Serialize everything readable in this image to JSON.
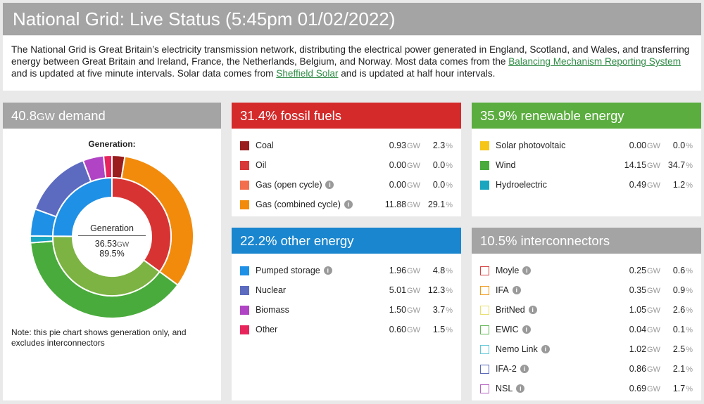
{
  "header": {
    "title": "National Grid: Live Status (5:45pm 01/02/2022)"
  },
  "intro": {
    "text1": "The National Grid is Great Britain’s electricity transmission network, distributing the electrical power generated in England, Scotland, and Wales, and transferring energy between Great Britain and Ireland, France, the Netherlands, Belgium, and Norway. Most data comes from the ",
    "link1": "Balancing Mechanism Reporting System",
    "text2": " and is updated at five minute intervals. Solar data comes from ",
    "link2": "Sheffield Solar",
    "text3": " and is updated at half hour intervals."
  },
  "demand": {
    "value": "40.8",
    "unit": "GW",
    "suffix": " demand",
    "chart_title": "Generation:",
    "centre_label": "Generation",
    "centre_value": "36.53",
    "centre_unit": "GW",
    "centre_pct": "89.5%",
    "note": "Note: this pie chart shows generation only, and excludes interconnectors"
  },
  "units": {
    "gw": "GW",
    "pct": "%"
  },
  "fossil": {
    "title": "31.4% fossil fuels",
    "color": "#d42a2a",
    "rows": [
      {
        "label": "Coal",
        "gw": "0.93",
        "pct": "2.3",
        "color": "#9a1c1c",
        "info": false
      },
      {
        "label": "Oil",
        "gw": "0.00",
        "pct": "0.0",
        "color": "#d93838",
        "info": false
      },
      {
        "label": "Gas (open cycle)",
        "gw": "0.00",
        "pct": "0.0",
        "color": "#f26e4c",
        "info": true
      },
      {
        "label": "Gas (combined cycle)",
        "gw": "11.88",
        "pct": "29.1",
        "color": "#f28b0c",
        "info": true
      }
    ]
  },
  "renewable": {
    "title": "35.9% renewable energy",
    "color": "#5aad3e",
    "rows": [
      {
        "label": "Solar photovoltaic",
        "gw": "0.00",
        "pct": "0.0",
        "color": "#f5c518",
        "info": false
      },
      {
        "label": "Wind",
        "gw": "14.15",
        "pct": "34.7",
        "color": "#49ab3c",
        "info": false
      },
      {
        "label": "Hydroelectric",
        "gw": "0.49",
        "pct": "1.2",
        "color": "#1aa6be",
        "info": false
      }
    ]
  },
  "other": {
    "title": "22.2% other energy",
    "color": "#1a86cf",
    "rows": [
      {
        "label": "Pumped storage",
        "gw": "1.96",
        "pct": "4.8",
        "color": "#1e90e6",
        "info": true
      },
      {
        "label": "Nuclear",
        "gw": "5.01",
        "pct": "12.3",
        "color": "#5c6bc0",
        "info": false
      },
      {
        "label": "Biomass",
        "gw": "1.50",
        "pct": "3.7",
        "color": "#b044c4",
        "info": false
      },
      {
        "label": "Other",
        "gw": "0.60",
        "pct": "1.5",
        "color": "#e8245c",
        "info": false
      }
    ]
  },
  "interconnectors": {
    "title": "10.5% interconnectors",
    "color": "#a4a4a4",
    "rows": [
      {
        "label": "Moyle",
        "gw": "0.25",
        "pct": "0.6",
        "color": "#d94040",
        "info": true
      },
      {
        "label": "IFA",
        "gw": "0.35",
        "pct": "0.9",
        "color": "#f29a1a",
        "info": true
      },
      {
        "label": "BritNed",
        "gw": "1.05",
        "pct": "2.6",
        "color": "#e8e070",
        "info": true
      },
      {
        "label": "EWIC",
        "gw": "0.04",
        "pct": "0.1",
        "color": "#66b858",
        "info": true
      },
      {
        "label": "Nemo Link",
        "gw": "1.02",
        "pct": "2.5",
        "color": "#62c8d8",
        "info": true
      },
      {
        "label": "IFA-2",
        "gw": "0.86",
        "pct": "2.1",
        "color": "#5a68b8",
        "info": true
      },
      {
        "label": "NSL",
        "gw": "0.69",
        "pct": "1.7",
        "color": "#b866c4",
        "info": true
      }
    ]
  },
  "chart_data": {
    "type": "pie",
    "title": "Generation:",
    "inner_ring": [
      {
        "name": "fossil fuels",
        "value": 12.81,
        "color": "#d83333"
      },
      {
        "name": "renewable energy",
        "value": 14.64,
        "color": "#7cb342"
      },
      {
        "name": "other energy",
        "value": 9.07,
        "color": "#1e90e6"
      }
    ],
    "outer_ring": [
      {
        "name": "Coal",
        "value": 0.93,
        "color": "#9a1c1c"
      },
      {
        "name": "Oil",
        "value": 0.0,
        "color": "#d93838"
      },
      {
        "name": "Gas (open cycle)",
        "value": 0.0,
        "color": "#f26e4c"
      },
      {
        "name": "Gas (combined cycle)",
        "value": 11.88,
        "color": "#f28b0c"
      },
      {
        "name": "Solar photovoltaic",
        "value": 0.0,
        "color": "#f5c518"
      },
      {
        "name": "Wind",
        "value": 14.15,
        "color": "#49ab3c"
      },
      {
        "name": "Hydroelectric",
        "value": 0.49,
        "color": "#1aa6be"
      },
      {
        "name": "Pumped storage",
        "value": 1.96,
        "color": "#1e90e6"
      },
      {
        "name": "Nuclear",
        "value": 5.01,
        "color": "#5c6bc0"
      },
      {
        "name": "Biomass",
        "value": 1.5,
        "color": "#b044c4"
      },
      {
        "name": "Other",
        "value": 0.6,
        "color": "#e8245c"
      }
    ]
  }
}
